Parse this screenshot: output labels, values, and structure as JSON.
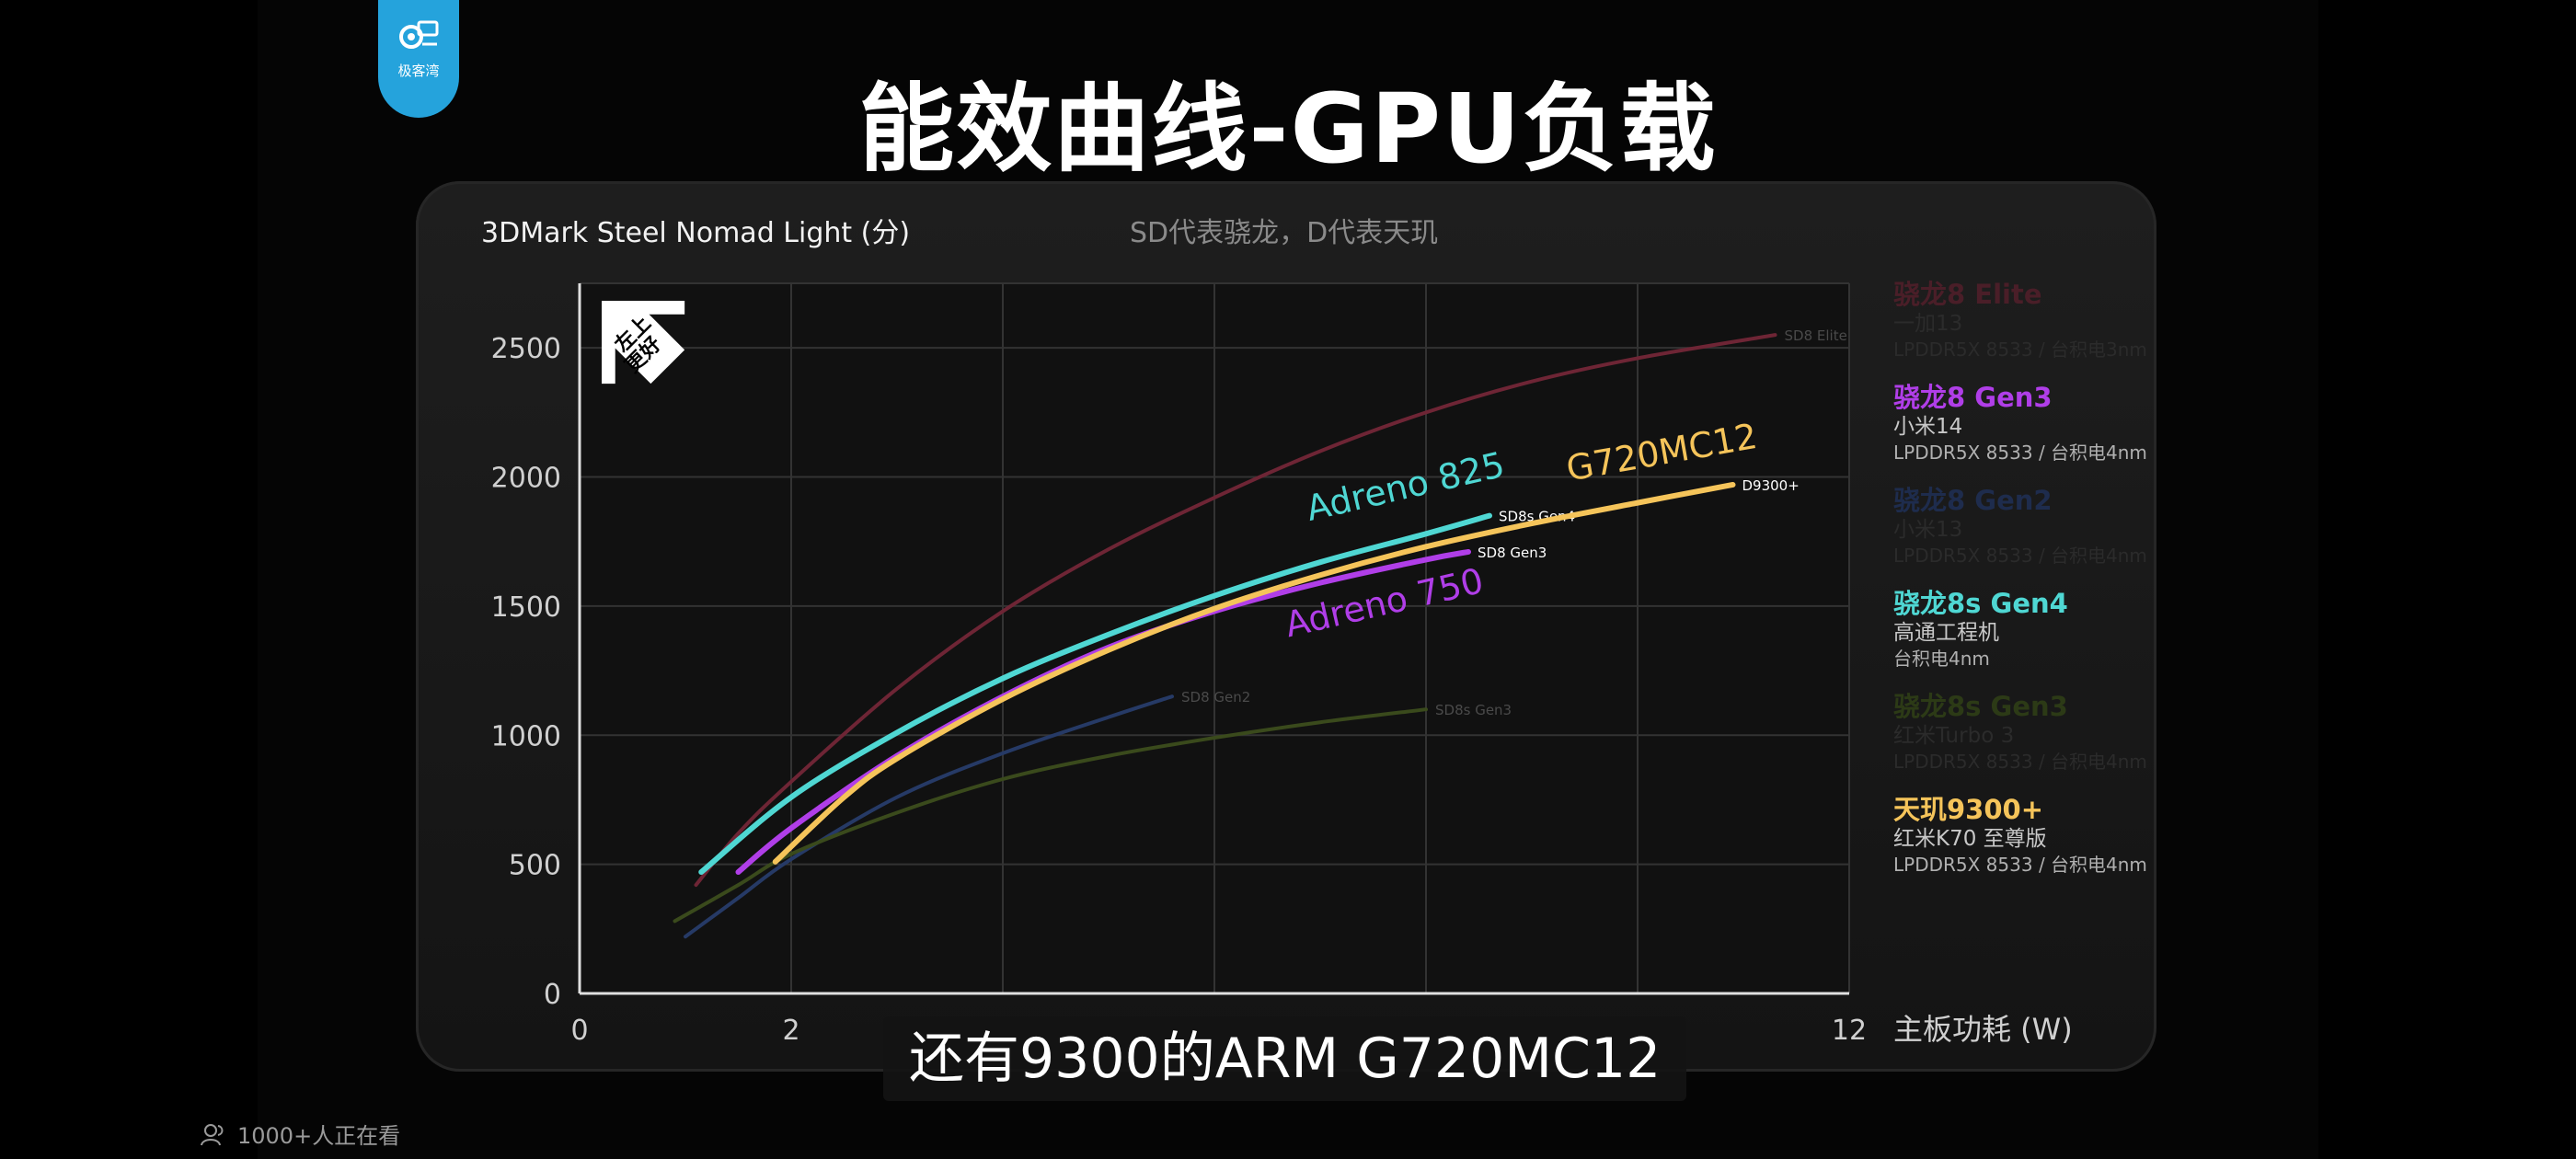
{
  "logo": {
    "text": "极客湾",
    "icon": "gear-card-icon",
    "color": "#25a3dc"
  },
  "title": "能效曲线-GPU负载",
  "chart_title": "3DMark Steel Nomad Light (分)",
  "chart_subtitle": "SD代表骁龙，D代表天玑",
  "badge": {
    "text": "左上更好",
    "icon": "up-left-arrow-icon"
  },
  "caption": "还有9300的ARM G720MC12",
  "viewers": "1000+人正在看",
  "chart_data": {
    "type": "line",
    "xlabel": "主板功耗 (W)",
    "ylabel": "",
    "xlim": [
      0,
      12
    ],
    "ylim": [
      0,
      2750
    ],
    "xticks": [
      0,
      2,
      4,
      6,
      8,
      10,
      12
    ],
    "xtick_labels": [
      "0",
      "2",
      "",
      "",
      "",
      "",
      "12"
    ],
    "yticks": [
      0,
      500,
      1000,
      1500,
      2000,
      2500
    ],
    "grid": true,
    "series": [
      {
        "name": "SD8 Elite",
        "color": "#6e2535",
        "highlight": false,
        "label": "SD8 Elite",
        "x": [
          1.1,
          1.5,
          2,
          3,
          4,
          5,
          6,
          7,
          8,
          9,
          10,
          11.3
        ],
        "y": [
          420,
          620,
          820,
          1180,
          1480,
          1720,
          1920,
          2100,
          2250,
          2370,
          2460,
          2550
        ]
      },
      {
        "name": "SD8 Gen2",
        "color": "#263a66",
        "highlight": false,
        "label": "SD8 Gen2",
        "x": [
          1.0,
          1.5,
          2,
          3,
          4,
          5,
          5.6
        ],
        "y": [
          220,
          370,
          520,
          760,
          930,
          1070,
          1150
        ]
      },
      {
        "name": "SD8s Gen3",
        "color": "#3a4a1c",
        "highlight": false,
        "label": "SD8s Gen3",
        "x": [
          0.9,
          1.5,
          2,
          3,
          4,
          5,
          6,
          7,
          8
        ],
        "y": [
          280,
          420,
          540,
          700,
          830,
          920,
          990,
          1050,
          1100
        ]
      },
      {
        "name": "SD8s Gen4",
        "color": "#4fd7d3",
        "highlight": true,
        "label": "SD8s Gen4",
        "gpu_label": "Adreno 825",
        "x": [
          1.15,
          2,
          3,
          4,
          5,
          6,
          7,
          8,
          8.6
        ],
        "y": [
          470,
          760,
          1010,
          1220,
          1390,
          1540,
          1670,
          1780,
          1850
        ]
      },
      {
        "name": "SD8 Gen3",
        "color": "#b03ee8",
        "highlight": true,
        "label": "SD8 Gen3",
        "gpu_label": "Adreno 750",
        "x": [
          1.5,
          2,
          3,
          4,
          5,
          6,
          7,
          8,
          8.4
        ],
        "y": [
          470,
          640,
          920,
          1150,
          1340,
          1480,
          1590,
          1680,
          1710
        ]
      },
      {
        "name": "D9300+",
        "color": "#f5c45a",
        "highlight": true,
        "label": "D9300+",
        "gpu_label": "G720MC12",
        "x": [
          1.85,
          2.5,
          3,
          4,
          5,
          6,
          7,
          8,
          9,
          10,
          10.9
        ],
        "y": [
          510,
          760,
          910,
          1140,
          1330,
          1490,
          1620,
          1730,
          1820,
          1900,
          1970
        ]
      }
    ]
  },
  "legend": [
    {
      "name": "骁龙8 Elite",
      "device": "一加13",
      "memory": "LPDDR5X 8533 / 台积电3nm",
      "color": "#4a1e28",
      "active": false
    },
    {
      "name": "骁龙8 Gen3",
      "device": "小米14",
      "memory": "LPDDR5X 8533 / 台积电4nm",
      "color": "#b03ee8",
      "active": true
    },
    {
      "name": "骁龙8 Gen2",
      "device": "小米13",
      "memory": "LPDDR5X 8533 / 台积电4nm",
      "color": "#1e2c4d",
      "active": false
    },
    {
      "name": "骁龙8s Gen4",
      "device": "高通工程机",
      "memory": "台积电4nm",
      "color": "#4fd7d3",
      "active": true
    },
    {
      "name": "骁龙8s Gen3",
      "device": "红米Turbo 3",
      "memory": "LPDDR5X 8533 / 台积电4nm",
      "color": "#2c3a16",
      "active": false
    },
    {
      "name": "天玑9300+",
      "device": "红米K70 至尊版",
      "memory": "LPDDR5X 8533 / 台积电4nm",
      "color": "#f5c45a",
      "active": true
    }
  ]
}
